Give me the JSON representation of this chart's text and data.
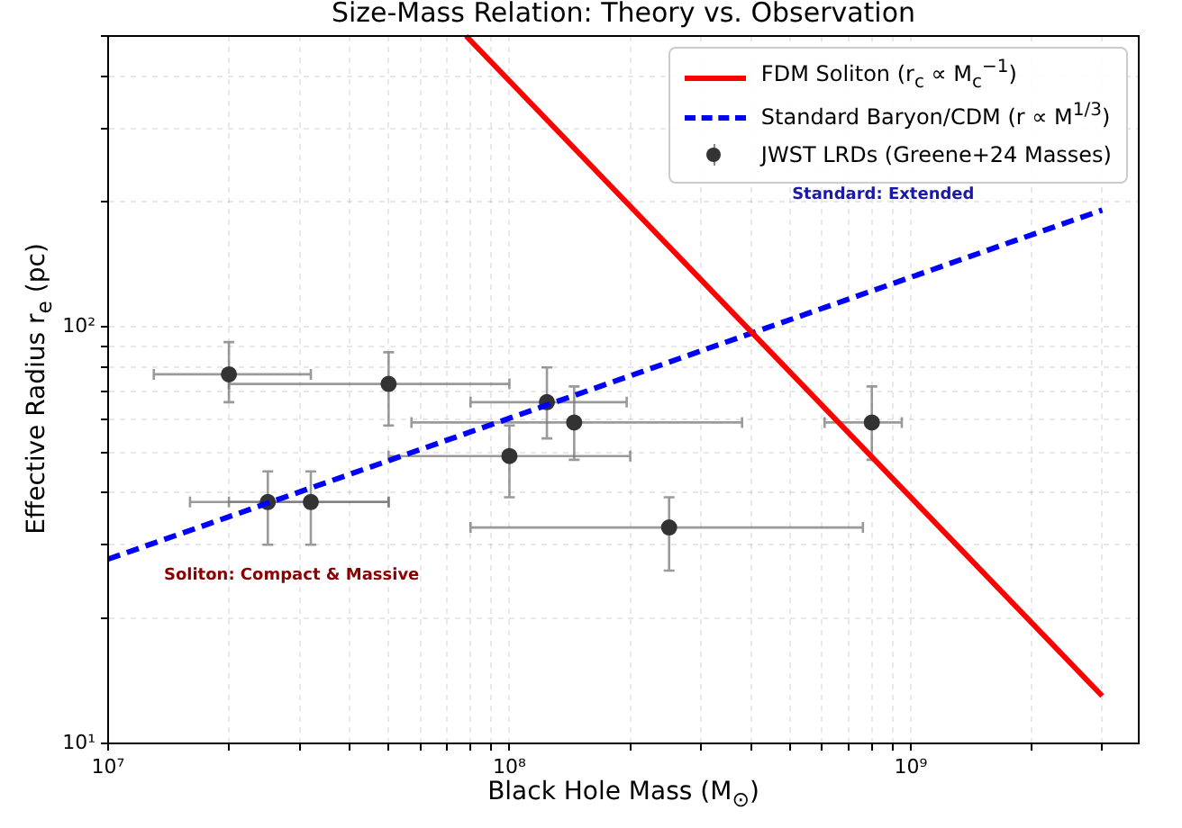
{
  "chart_data": {
    "type": "scatter",
    "title": "Size-Mass Relation: Theory vs. Observation",
    "xlabel": "Black Hole Mass (M$_{⊙}$)",
    "ylabel": "Effective Radius r$_{e}$ (pc)",
    "log": "xy",
    "grid": true,
    "legend": "top right",
    "xlim": [
      10000000,
      3700000000
    ],
    "ylim": [
      10,
      500
    ],
    "xticks": [
      {
        "value": 10000000,
        "label": "10⁷"
      },
      {
        "value": 20000000,
        "label": null
      },
      {
        "value": 30000000,
        "label": null
      },
      {
        "value": 40000000,
        "label": null
      },
      {
        "value": 50000000,
        "label": null
      },
      {
        "value": 60000000,
        "label": null
      },
      {
        "value": 70000000,
        "label": null
      },
      {
        "value": 80000000,
        "label": null
      },
      {
        "value": 90000000,
        "label": null
      },
      {
        "value": 100000000,
        "label": "10⁸"
      },
      {
        "value": 200000000,
        "label": null
      },
      {
        "value": 300000000,
        "label": null
      },
      {
        "value": 400000000,
        "label": null
      },
      {
        "value": 500000000,
        "label": null
      },
      {
        "value": 600000000,
        "label": null
      },
      {
        "value": 700000000,
        "label": null
      },
      {
        "value": 800000000,
        "label": null
      },
      {
        "value": 900000000,
        "label": null
      },
      {
        "value": 1000000000,
        "label": "10⁹"
      },
      {
        "value": 2000000000,
        "label": null
      },
      {
        "value": 3000000000,
        "label": null
      }
    ],
    "yticks": [
      {
        "value": 10,
        "label": "10¹"
      },
      {
        "value": 20,
        "label": null
      },
      {
        "value": 30,
        "label": null
      },
      {
        "value": 40,
        "label": null
      },
      {
        "value": 50,
        "label": null
      },
      {
        "value": 60,
        "label": null
      },
      {
        "value": 70,
        "label": null
      },
      {
        "value": 80,
        "label": null
      },
      {
        "value": 90,
        "label": null
      },
      {
        "value": 100,
        "label": "10²"
      },
      {
        "value": 200,
        "label": null
      },
      {
        "value": 300,
        "label": null
      },
      {
        "value": 400,
        "label": null
      },
      {
        "value": 500,
        "label": null
      }
    ],
    "series": [
      {
        "name": "FDM Soliton (r$_{c}$ ∝ M$_{c}$$^{−1}$)",
        "type": "line",
        "line_style": "solid",
        "marker": "none",
        "color": "#ff0000",
        "x": [
          78000000,
          3000000000
        ],
        "values": [
          500,
          13
        ]
      },
      {
        "name": "Standard Baryon/CDM (r ∝ M$^{1/3}$)",
        "type": "line",
        "line_style": "dashed",
        "marker": "none",
        "color": "#0000ff",
        "x": [
          10000000,
          3000000000
        ],
        "values": [
          27.7,
          191
        ]
      },
      {
        "name": "JWST LRDs (Greene+24 Masses)",
        "marker": "circle",
        "color": "#333333",
        "x": [
          20000000,
          50000000,
          124000000,
          145000000,
          100000000,
          25000000,
          32000000,
          250000000,
          800000000
        ],
        "values": [
          77,
          73,
          66,
          59,
          49,
          38,
          38,
          33,
          59
        ],
        "errors": [
          [
            66,
            92
          ],
          [
            58,
            87
          ],
          [
            54,
            80
          ],
          [
            48,
            72
          ],
          [
            39,
            58
          ],
          [
            30,
            45
          ],
          [
            30,
            45
          ],
          [
            26,
            39
          ],
          [
            48,
            72
          ]
        ],
        "xerrors": [
          [
            13000000,
            32000000
          ],
          [
            20000000,
            100000000
          ],
          [
            80000000,
            196000000
          ],
          [
            57000000,
            380000000
          ],
          [
            50000000,
            200000000
          ],
          [
            16000000,
            50000000
          ],
          [
            20000000,
            50000000
          ],
          [
            80000000,
            760000000
          ],
          [
            610000000,
            950000000
          ]
        ]
      }
    ],
    "annotations": [
      "Standard: Extended",
      "Soliton: Compact & Massive"
    ]
  }
}
